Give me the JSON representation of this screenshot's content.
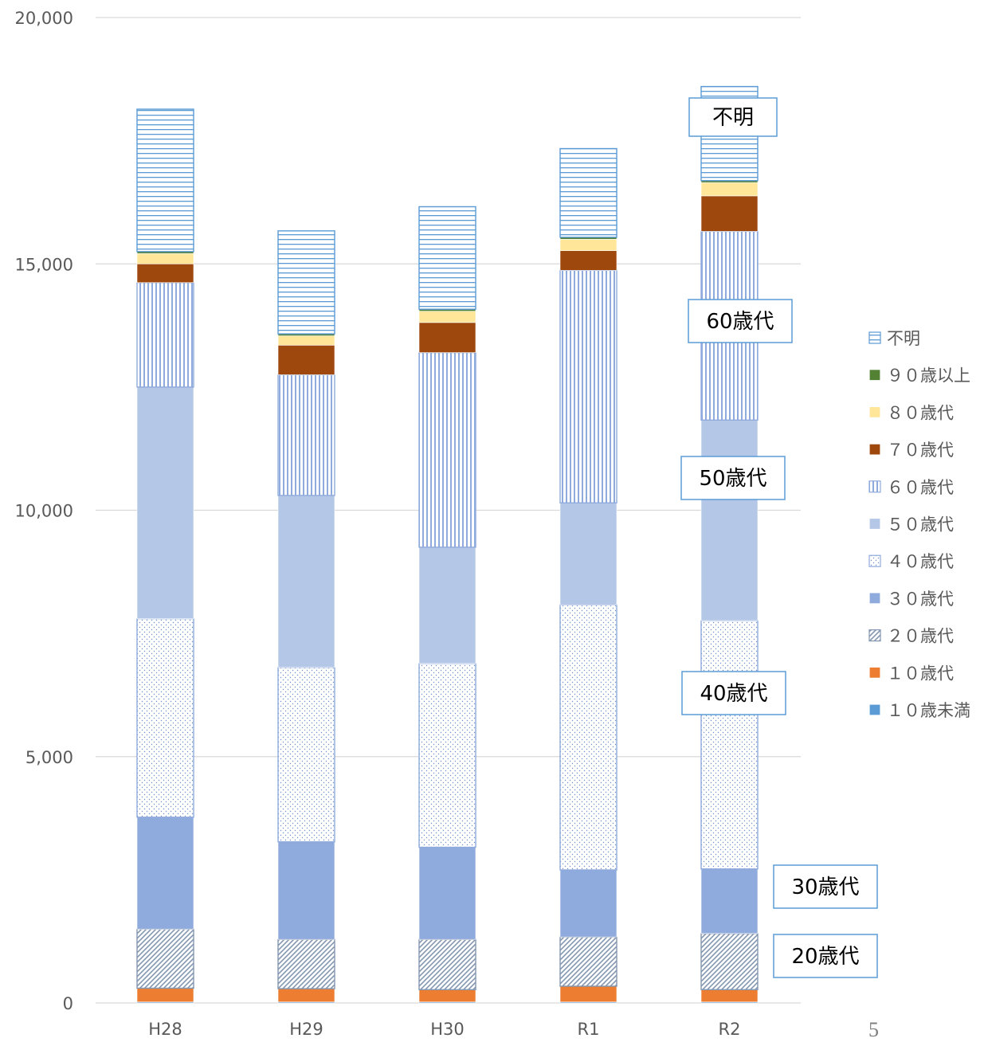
{
  "chart_data": {
    "type": "bar",
    "stacked": true,
    "categories": [
      "H28",
      "H29",
      "H30",
      "R1",
      "R2"
    ],
    "ylim": [
      0,
      20000
    ],
    "yticks": [
      0,
      5000,
      10000,
      15000,
      20000
    ],
    "ytick_labels": [
      "0",
      "5,000",
      "10,000",
      "15,000",
      "20,000"
    ],
    "grid": true,
    "legend_position": "right",
    "series": [
      {
        "name": "１０歳未満",
        "color": "#5b9bd5",
        "pattern": "solid",
        "values": [
          20,
          20,
          20,
          20,
          20
        ]
      },
      {
        "name": "１０歳代",
        "color": "#ed7d31",
        "pattern": "solid",
        "values": [
          280,
          270,
          250,
          320,
          250
        ]
      },
      {
        "name": "２０歳代",
        "color": "#8497b0",
        "pattern": "diagonal",
        "values": [
          1200,
          1000,
          1020,
          1000,
          1140
        ]
      },
      {
        "name": "３０歳代",
        "color": "#8faadc",
        "pattern": "solid",
        "values": [
          2270,
          1980,
          1870,
          1360,
          1310
        ]
      },
      {
        "name": "４０歳代",
        "color": "#8faadc",
        "pattern": "dots",
        "values": [
          4030,
          3540,
          3730,
          5380,
          5040
        ]
      },
      {
        "name": "５０歳代",
        "color": "#b4c7e7",
        "pattern": "solid",
        "values": [
          4700,
          3490,
          2360,
          2070,
          4070
        ]
      },
      {
        "name": "６０歳代",
        "color": "#8faadc",
        "pattern": "vertical",
        "values": [
          2120,
          2450,
          3950,
          4720,
          3830
        ]
      },
      {
        "name": "７０歳代",
        "color": "#9e480e",
        "pattern": "solid",
        "values": [
          380,
          600,
          610,
          400,
          720
        ]
      },
      {
        "name": "８０歳代",
        "color": "#ffe699",
        "pattern": "solid",
        "values": [
          210,
          190,
          230,
          230,
          270
        ]
      },
      {
        "name": "９０歳以上",
        "color": "#548235",
        "pattern": "solid",
        "values": [
          40,
          40,
          40,
          40,
          40
        ]
      },
      {
        "name": "不明",
        "color": "#5b9bd5",
        "pattern": "horizontal",
        "values": [
          2890,
          2090,
          2080,
          1800,
          1910
        ]
      }
    ],
    "callouts": [
      "不明",
      "60歳代",
      "50歳代",
      "40歳代",
      "30歳代",
      "20歳代"
    ]
  },
  "page_number": "5"
}
